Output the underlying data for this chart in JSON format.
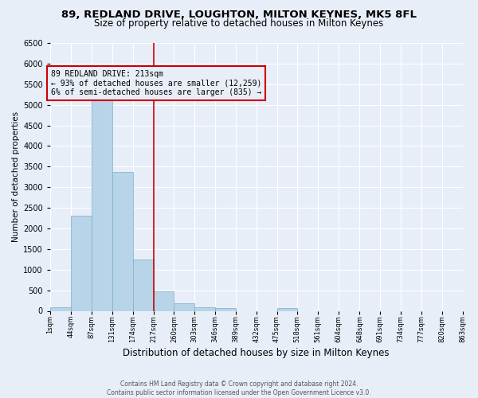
{
  "title": "89, REDLAND DRIVE, LOUGHTON, MILTON KEYNES, MK5 8FL",
  "subtitle": "Size of property relative to detached houses in Milton Keynes",
  "xlabel": "Distribution of detached houses by size in Milton Keynes",
  "ylabel": "Number of detached properties",
  "footer_line1": "Contains HM Land Registry data © Crown copyright and database right 2024.",
  "footer_line2": "Contains public sector information licensed under the Open Government Licence v3.0.",
  "property_line_x": 217,
  "annotation_title": "89 REDLAND DRIVE: 213sqm",
  "annotation_line1": "← 93% of detached houses are smaller (12,259)",
  "annotation_line2": "6% of semi-detached houses are larger (835) →",
  "bar_edges": [
    1,
    44,
    87,
    131,
    174,
    217,
    260,
    303,
    346,
    389,
    432,
    475,
    518,
    561,
    604,
    648,
    691,
    734,
    777,
    820,
    863
  ],
  "bar_heights": [
    80,
    2300,
    5450,
    3380,
    1250,
    470,
    185,
    80,
    60,
    0,
    0,
    65,
    0,
    0,
    0,
    0,
    0,
    0,
    0,
    0
  ],
  "bar_color": "#b8d4e8",
  "bar_edge_color": "#7aafc8",
  "red_line_color": "#cc0000",
  "annotation_box_edge_color": "#cc0000",
  "ylim": [
    0,
    6500
  ],
  "yticks": [
    0,
    500,
    1000,
    1500,
    2000,
    2500,
    3000,
    3500,
    4000,
    4500,
    5000,
    5500,
    6000,
    6500
  ],
  "background_color": "#e8eef8",
  "grid_color": "#ffffff",
  "title_fontsize": 9.5,
  "subtitle_fontsize": 8.5,
  "ylabel_fontsize": 7.5,
  "xlabel_fontsize": 8.5,
  "tick_fontsize": 6,
  "annotation_fontsize": 7,
  "footer_fontsize": 5.5
}
